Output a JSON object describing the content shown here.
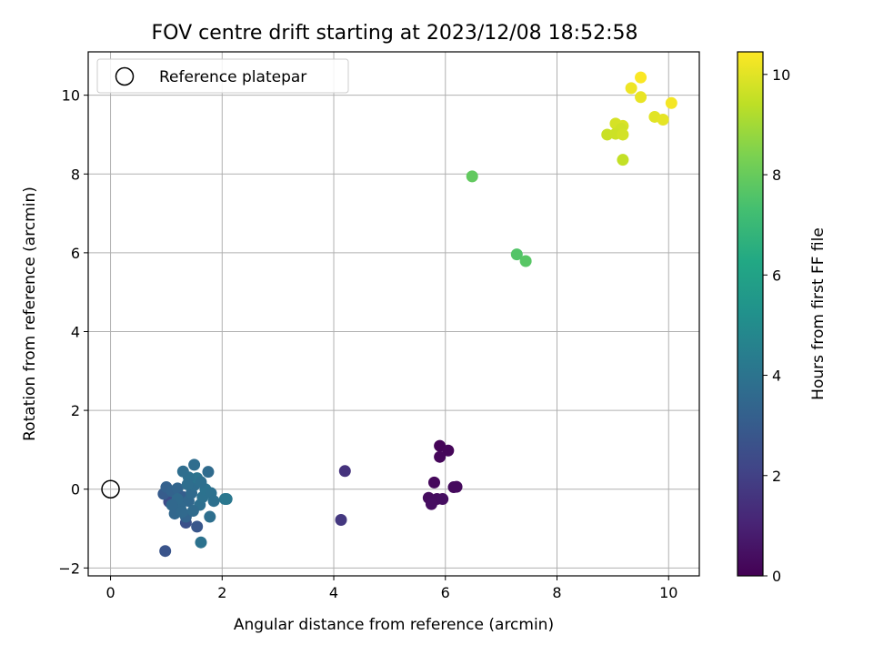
{
  "chart_data": {
    "type": "scatter",
    "title": "FOV centre drift starting at 2023/12/08 18:52:58",
    "xlabel": "Angular distance from reference (arcmin)",
    "ylabel": "Rotation from reference (arcmin)",
    "xlim": [
      -0.4,
      10.55
    ],
    "ylim": [
      -2.2,
      11.1
    ],
    "xticks": [
      0,
      2,
      4,
      6,
      8,
      10
    ],
    "yticks": [
      -2,
      0,
      2,
      4,
      6,
      8,
      10
    ],
    "grid": true,
    "legend": {
      "placement": "top-left",
      "entries": [
        "Reference platepar"
      ]
    },
    "reference_point": {
      "x": 0,
      "y": 0,
      "marker": "open-circle",
      "label": "Reference platepar"
    },
    "colorbar": {
      "label": "Hours from first FF file",
      "colormap": "viridis",
      "range": [
        0,
        10.45
      ],
      "ticks": [
        0,
        2,
        4,
        6,
        8,
        10
      ]
    },
    "points": [
      {
        "x": 5.9,
        "y": 1.1,
        "t": 0.1
      },
      {
        "x": 6.05,
        "y": 0.98,
        "t": 0.15
      },
      {
        "x": 5.9,
        "y": 0.82,
        "t": 0.18
      },
      {
        "x": 5.8,
        "y": 0.17,
        "t": 0.22
      },
      {
        "x": 6.15,
        "y": 0.05,
        "t": 0.26
      },
      {
        "x": 6.2,
        "y": 0.06,
        "t": 0.28
      },
      {
        "x": 5.7,
        "y": -0.22,
        "t": 0.32
      },
      {
        "x": 5.85,
        "y": -0.25,
        "t": 0.35
      },
      {
        "x": 5.95,
        "y": -0.25,
        "t": 0.38
      },
      {
        "x": 5.75,
        "y": -0.38,
        "t": 0.4
      },
      {
        "x": 4.2,
        "y": 0.46,
        "t": 1.5
      },
      {
        "x": 4.13,
        "y": -0.78,
        "t": 1.7
      },
      {
        "x": 0.98,
        "y": -1.57,
        "t": 2.7
      },
      {
        "x": 1.05,
        "y": -0.32,
        "t": 2.4
      },
      {
        "x": 1.35,
        "y": -0.85,
        "t": 2.6
      },
      {
        "x": 1.55,
        "y": -0.95,
        "t": 2.8
      },
      {
        "x": 0.95,
        "y": -0.12,
        "t": 3.0
      },
      {
        "x": 1.0,
        "y": 0.05,
        "t": 3.2
      },
      {
        "x": 1.1,
        "y": -0.05,
        "t": 3.3
      },
      {
        "x": 1.2,
        "y": 0.02,
        "t": 3.4
      },
      {
        "x": 1.3,
        "y": -0.2,
        "t": 3.1
      },
      {
        "x": 1.4,
        "y": -0.3,
        "t": 3.5
      },
      {
        "x": 1.45,
        "y": -0.1,
        "t": 3.6
      },
      {
        "x": 1.5,
        "y": 0.1,
        "t": 3.7
      },
      {
        "x": 1.25,
        "y": -0.45,
        "t": 3.55
      },
      {
        "x": 1.15,
        "y": -0.62,
        "t": 3.45
      },
      {
        "x": 1.35,
        "y": -0.7,
        "t": 3.35
      },
      {
        "x": 1.6,
        "y": -0.4,
        "t": 3.8
      },
      {
        "x": 1.65,
        "y": -0.2,
        "t": 3.9
      },
      {
        "x": 1.7,
        "y": 0.0,
        "t": 3.95
      },
      {
        "x": 1.55,
        "y": 0.28,
        "t": 4.0
      },
      {
        "x": 1.4,
        "y": 0.3,
        "t": 3.85
      },
      {
        "x": 1.3,
        "y": 0.45,
        "t": 3.75
      },
      {
        "x": 1.5,
        "y": 0.62,
        "t": 3.7
      },
      {
        "x": 1.75,
        "y": 0.44,
        "t": 3.65
      },
      {
        "x": 1.8,
        "y": -0.1,
        "t": 3.9
      },
      {
        "x": 1.85,
        "y": -0.3,
        "t": 3.85
      },
      {
        "x": 1.78,
        "y": -0.7,
        "t": 3.8
      },
      {
        "x": 1.62,
        "y": -1.35,
        "t": 3.95
      },
      {
        "x": 2.05,
        "y": -0.25,
        "t": 4.1
      },
      {
        "x": 2.08,
        "y": -0.25,
        "t": 4.15
      },
      {
        "x": 1.2,
        "y": -0.25,
        "t": 3.6
      },
      {
        "x": 1.48,
        "y": -0.55,
        "t": 3.65
      },
      {
        "x": 1.1,
        "y": -0.4,
        "t": 3.5
      },
      {
        "x": 1.38,
        "y": 0.12,
        "t": 3.75
      },
      {
        "x": 1.62,
        "y": 0.18,
        "t": 3.8
      },
      {
        "x": 1.28,
        "y": -0.58,
        "t": 3.55
      },
      {
        "x": 6.48,
        "y": 7.94,
        "t": 7.9
      },
      {
        "x": 7.28,
        "y": 5.96,
        "t": 7.6
      },
      {
        "x": 7.44,
        "y": 5.79,
        "t": 7.7
      },
      {
        "x": 9.5,
        "y": 10.45,
        "t": 10.4
      },
      {
        "x": 9.33,
        "y": 10.18,
        "t": 10.2
      },
      {
        "x": 9.5,
        "y": 9.95,
        "t": 10.1
      },
      {
        "x": 10.05,
        "y": 9.8,
        "t": 10.3
      },
      {
        "x": 9.75,
        "y": 9.45,
        "t": 10.0
      },
      {
        "x": 9.9,
        "y": 9.38,
        "t": 10.05
      },
      {
        "x": 9.05,
        "y": 9.28,
        "t": 9.8
      },
      {
        "x": 9.18,
        "y": 9.22,
        "t": 9.85
      },
      {
        "x": 9.15,
        "y": 9.15,
        "t": 9.7
      },
      {
        "x": 8.9,
        "y": 9.0,
        "t": 9.6
      },
      {
        "x": 9.05,
        "y": 9.02,
        "t": 9.65
      },
      {
        "x": 9.18,
        "y": 9.0,
        "t": 9.75
      },
      {
        "x": 9.18,
        "y": 8.36,
        "t": 9.5
      }
    ]
  }
}
